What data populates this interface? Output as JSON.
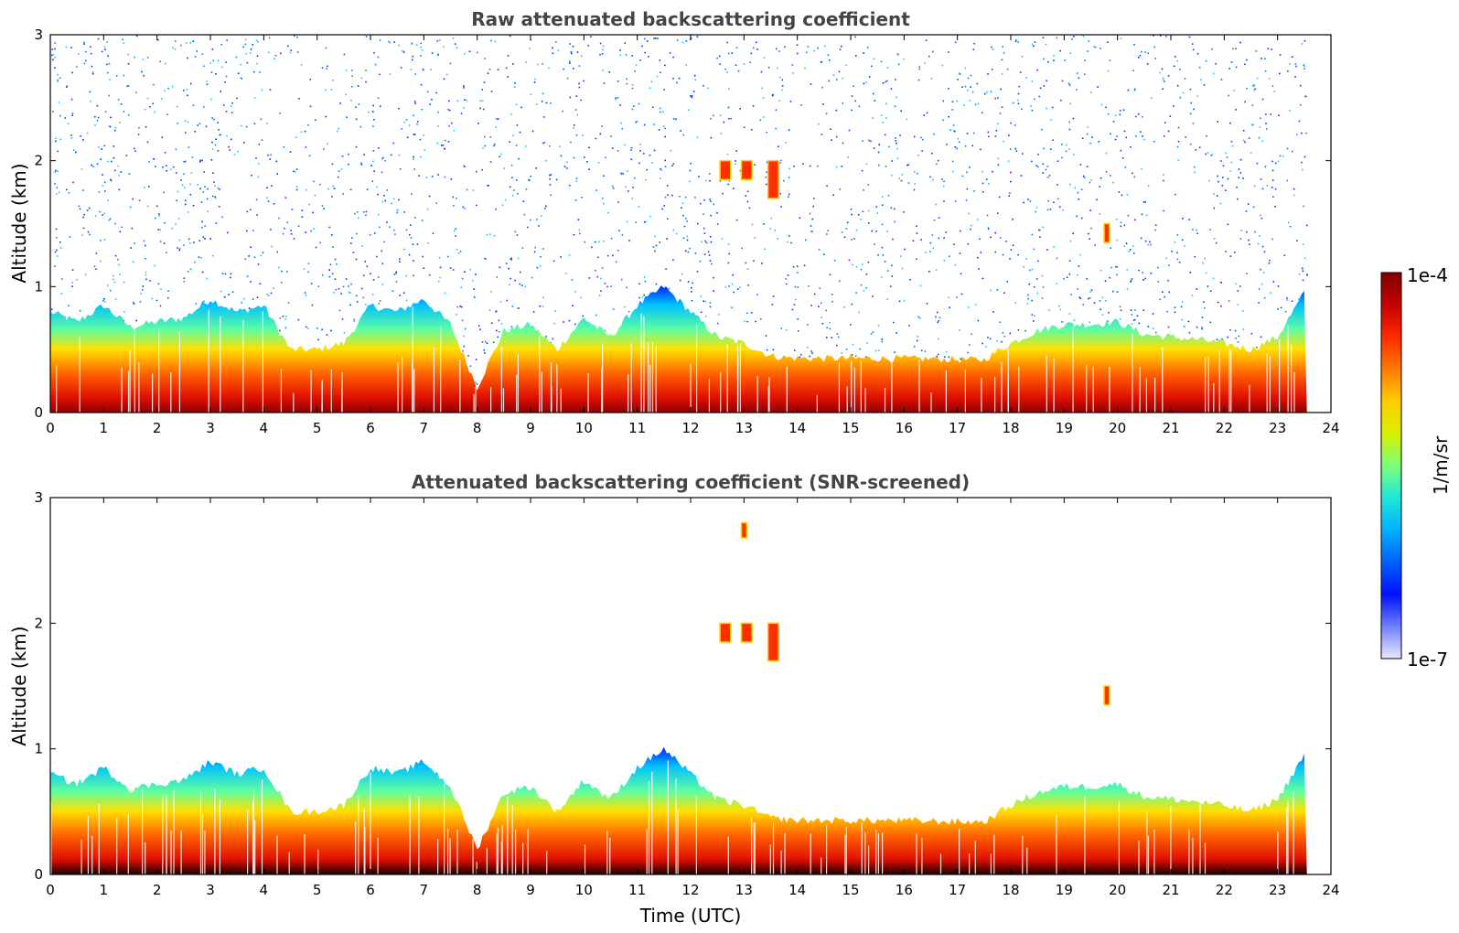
{
  "chart_data": [
    {
      "type": "heatmap",
      "title": "Raw attenuated backscattering coefficient",
      "xlabel": "",
      "ylabel": "Altitude (km)",
      "xlim": [
        0,
        24
      ],
      "ylim": [
        0,
        3
      ],
      "x_ticks": [
        "0",
        "1",
        "2",
        "3",
        "4",
        "5",
        "6",
        "7",
        "8",
        "9",
        "10",
        "11",
        "12",
        "13",
        "14",
        "15",
        "16",
        "17",
        "18",
        "19",
        "20",
        "21",
        "22",
        "23",
        "24"
      ],
      "y_ticks": [
        "0",
        "1",
        "2",
        "3"
      ],
      "boundary_layer_top_km": {
        "hours": [
          0,
          0.5,
          1,
          1.5,
          2,
          2.5,
          3,
          3.5,
          4,
          4.5,
          5,
          5.5,
          6,
          6.5,
          7,
          7.5,
          8,
          8.5,
          9,
          9.5,
          10,
          10.5,
          11,
          11.5,
          12,
          12.5,
          13,
          13.5,
          14,
          15,
          16,
          17,
          17.5,
          18,
          18.5,
          19,
          19.5,
          20,
          20.5,
          21,
          21.5,
          22,
          22.5,
          23,
          23.5
        ],
        "values": [
          0.8,
          0.72,
          0.85,
          0.68,
          0.72,
          0.75,
          0.9,
          0.8,
          0.85,
          0.5,
          0.5,
          0.55,
          0.85,
          0.8,
          0.9,
          0.7,
          0.2,
          0.65,
          0.7,
          0.5,
          0.75,
          0.6,
          0.85,
          1.0,
          0.8,
          0.6,
          0.55,
          0.45,
          0.43,
          0.43,
          0.43,
          0.42,
          0.42,
          0.55,
          0.65,
          0.7,
          0.7,
          0.72,
          0.62,
          0.6,
          0.58,
          0.55,
          0.5,
          0.6,
          0.95
        ]
      },
      "features": [
        {
          "type": "cloud",
          "hours": [
            12.55,
            12.75
          ],
          "base_km": 1.85,
          "top_km": 2.0
        },
        {
          "type": "cloud",
          "hours": [
            12.95,
            13.15
          ],
          "base_km": 1.85,
          "top_km": 2.0
        },
        {
          "type": "cloud",
          "hours": [
            13.45,
            13.65
          ],
          "base_km": 1.7,
          "top_km": 2.0
        },
        {
          "type": "cloud",
          "hours": [
            19.75,
            19.85
          ],
          "base_km": 1.35,
          "top_km": 1.5
        }
      ]
    },
    {
      "type": "heatmap",
      "title": "Attenuated backscattering coefficient (SNR-screened)",
      "xlabel": "Time (UTC)",
      "ylabel": "Altitude (km)",
      "xlim": [
        0,
        24
      ],
      "ylim": [
        0,
        3
      ],
      "x_ticks": [
        "0",
        "1",
        "2",
        "3",
        "4",
        "5",
        "6",
        "7",
        "8",
        "9",
        "10",
        "11",
        "12",
        "13",
        "14",
        "15",
        "16",
        "17",
        "18",
        "19",
        "20",
        "21",
        "22",
        "23",
        "24"
      ],
      "y_ticks": [
        "0",
        "1",
        "2",
        "3"
      ],
      "boundary_layer_top_km": {
        "hours": [
          0,
          0.5,
          1,
          1.5,
          2,
          2.5,
          3,
          3.5,
          4,
          4.5,
          5,
          5.5,
          6,
          6.5,
          7,
          7.5,
          8,
          8.5,
          9,
          9.5,
          10,
          10.5,
          11,
          11.5,
          12,
          12.5,
          13,
          13.5,
          14,
          15,
          16,
          17,
          17.5,
          18,
          18.5,
          19,
          19.5,
          20,
          20.5,
          21,
          21.5,
          22,
          22.5,
          23,
          23.5
        ],
        "values": [
          0.8,
          0.72,
          0.85,
          0.68,
          0.72,
          0.75,
          0.9,
          0.8,
          0.85,
          0.5,
          0.5,
          0.55,
          0.85,
          0.8,
          0.9,
          0.7,
          0.2,
          0.65,
          0.7,
          0.5,
          0.75,
          0.6,
          0.85,
          1.0,
          0.8,
          0.6,
          0.55,
          0.45,
          0.43,
          0.43,
          0.43,
          0.42,
          0.42,
          0.55,
          0.65,
          0.7,
          0.7,
          0.72,
          0.62,
          0.6,
          0.58,
          0.55,
          0.5,
          0.6,
          0.95
        ]
      },
      "features": [
        {
          "type": "cloud",
          "hours": [
            12.55,
            12.75
          ],
          "base_km": 1.85,
          "top_km": 2.0
        },
        {
          "type": "cloud",
          "hours": [
            12.95,
            13.15
          ],
          "base_km": 1.85,
          "top_km": 2.0
        },
        {
          "type": "cloud",
          "hours": [
            13.45,
            13.65
          ],
          "base_km": 1.7,
          "top_km": 2.0
        },
        {
          "type": "cloud",
          "hours": [
            19.75,
            19.85
          ],
          "base_km": 1.35,
          "top_km": 1.5
        },
        {
          "type": "cloud",
          "hours": [
            12.95,
            13.05
          ],
          "base_km": 2.68,
          "top_km": 2.8
        }
      ]
    }
  ],
  "colorbar": {
    "label": "1/m/sr",
    "max_label": "1e-4",
    "min_label": "1e-7",
    "colors": [
      "#7f0000",
      "#c40000",
      "#ff2a00",
      "#ff7a00",
      "#ffcc00",
      "#d8f000",
      "#7dff7a",
      "#1ee8d8",
      "#00b0ff",
      "#0060ff",
      "#0010ff",
      "#7080ff",
      "#e8e8ff"
    ]
  }
}
